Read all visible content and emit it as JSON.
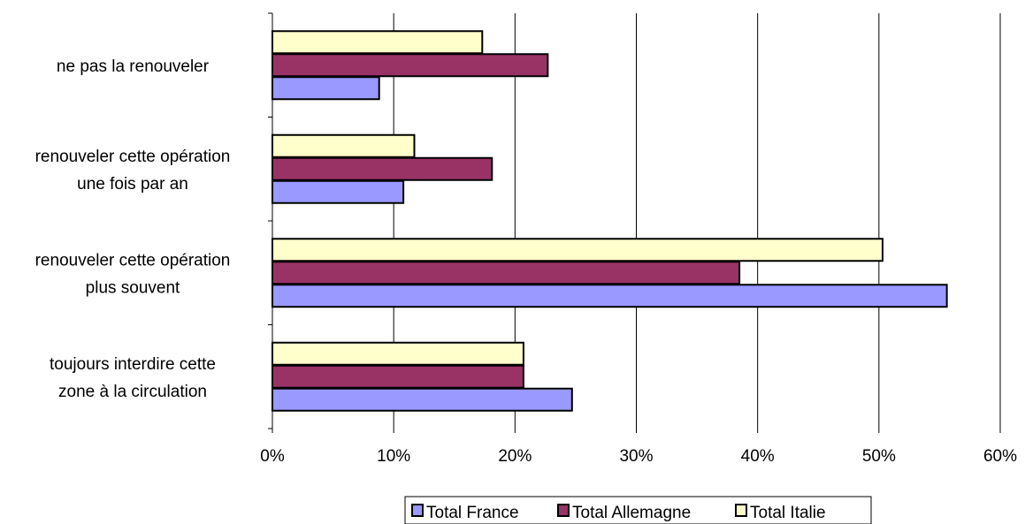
{
  "chart_data": {
    "type": "bar",
    "orientation": "horizontal",
    "categories": [
      [
        "ne pas la renouveler"
      ],
      [
        "renouveler cette opération",
        "une fois par an"
      ],
      [
        "renouveler cette opération",
        "plus souvent"
      ],
      [
        "toujours interdire cette",
        "zone à la circulation"
      ]
    ],
    "series": [
      {
        "name": "Total France",
        "color": "#9999ff",
        "values": [
          8.8,
          10.8,
          55.6,
          24.7
        ]
      },
      {
        "name": "Total Allemagne",
        "color": "#993366",
        "values": [
          22.7,
          18.1,
          38.5,
          20.7
        ]
      },
      {
        "name": "Total Italie",
        "color": "#ffffcc",
        "values": [
          17.3,
          11.7,
          50.3,
          20.7
        ]
      }
    ],
    "xlim": [
      0,
      60
    ],
    "x_ticks": [
      "0%",
      "10%",
      "20%",
      "30%",
      "40%",
      "50%",
      "60%"
    ],
    "grid": "vertical",
    "legend_position": "bottom"
  }
}
